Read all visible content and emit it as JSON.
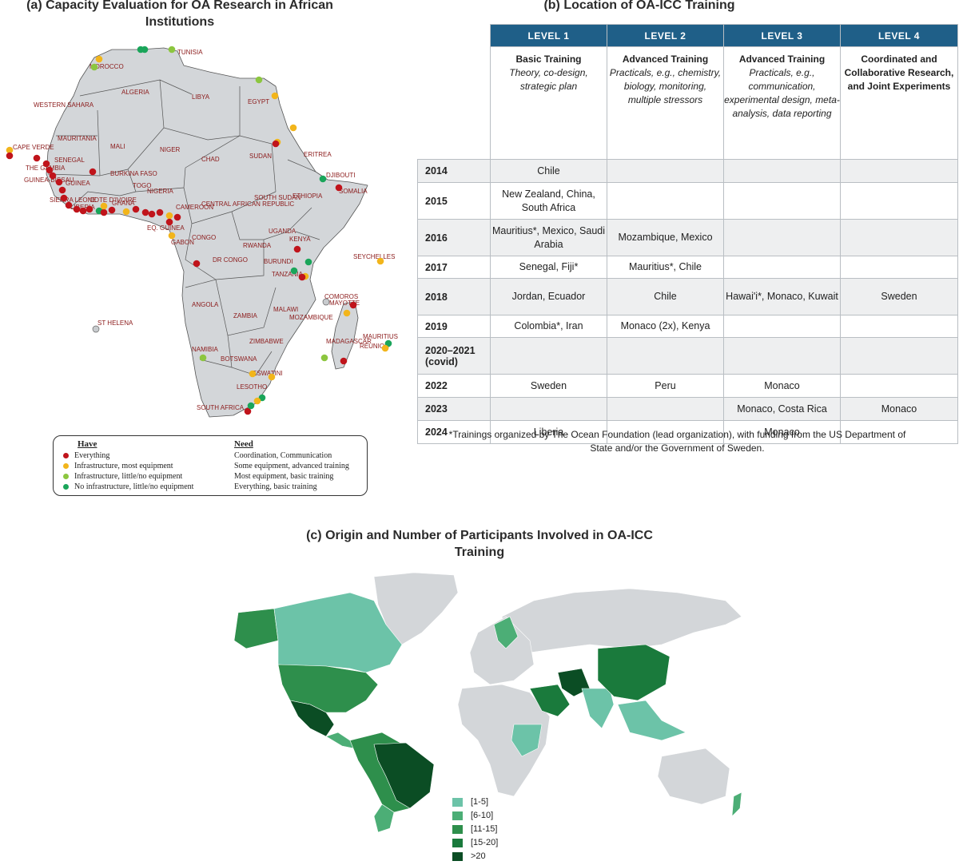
{
  "panels": {
    "a_title": "(a) Capacity Evaluation for OA Research in African Institutions",
    "b_title": "(b) Location of OA-ICC Training",
    "c_title": "(c) Origin and Number of Participants Involved in OA-ICC Training"
  },
  "africa_labels": {
    "tunisia": "TUNISIA",
    "morocco": "MOROCCO",
    "algeria": "ALGERIA",
    "libya": "LIBYA",
    "egypt": "EGYPT",
    "western_sahara": "WESTERN SAHARA",
    "mauritania": "MAURITANIA",
    "mali": "MALI",
    "niger": "NIGER",
    "chad": "CHAD",
    "sudan": "SUDAN",
    "eritrea": "ERITREA",
    "cape_verde": "CAPE VERDE",
    "senegal": "SENEGAL",
    "gambia": "THE GAMBIA",
    "guinea_bissau": "GUINEA-BISSAU",
    "guinea": "GUINEA",
    "sierra_leone": "SIERRA LEONE",
    "liberia": "LIBERIA",
    "cote_divoire": "COTE D'IVOIRE",
    "burkina": "BURKINA FASO",
    "ghana": "GHANA",
    "togo": "TOGO",
    "nigeria": "NIGERIA",
    "cameroon": "CAMEROON",
    "car": "CENTRAL AFRICAN REPUBLIC",
    "south_sudan": "SOUTH SUDAN",
    "ethiopia": "ETHIOPIA",
    "djibouti": "DJIBOUTI",
    "somalia": "SOMALIA",
    "eq_guinea": "EQ. GUINEA",
    "gabon": "GABON",
    "congo": "CONGO",
    "dr_congo": "DR CONGO",
    "uganda": "UGANDA",
    "kenya": "KENYA",
    "rwanda": "RWANDA",
    "burundi": "BURUNDI",
    "tanzania": "TANZANIA",
    "seychelles": "SEYCHELLES",
    "angola": "ANGOLA",
    "zambia": "ZAMBIA",
    "malawi": "MALAWI",
    "mozambique": "MOZAMBIQUE",
    "comoros": "COMOROS",
    "mayotte": "MAYOTTE",
    "madagascar": "MADAGASCAR",
    "mauritius": "MAURITIUS",
    "reunion": "REUNION",
    "st_helena": "ST HELENA",
    "namibia": "NAMIBIA",
    "botswana": "BOTSWANA",
    "zimbabwe": "ZIMBABWE",
    "lesotho": "LESOTHO",
    "eswatini": "ESWATINI",
    "south_africa": "SOUTH AFRICA"
  },
  "legend_a": {
    "have_header": "Have",
    "need_header": "Need",
    "rows": [
      {
        "have": "Everything",
        "need": "Coordination, Communication",
        "color": "#c0141b"
      },
      {
        "have": "Infrastructure, most equipment",
        "need": "Some equipment, advanced training",
        "color": "#f2b51b"
      },
      {
        "have": "Infrastructure, little/no equipment",
        "need": "Most equipment, basic training",
        "color": "#8cc63f"
      },
      {
        "have": "No infrastructure, little/no equipment",
        "need": "Everything, basic training",
        "color": "#1aa55a"
      }
    ]
  },
  "table": {
    "levels": [
      "LEVEL 1",
      "LEVEL 2",
      "LEVEL 3",
      "LEVEL 4"
    ],
    "desc": [
      {
        "title": "Basic Training",
        "body": "Theory, co-design, strategic plan"
      },
      {
        "title": "Advanced Training",
        "body": "Practicals, e.g., chemistry, biology, monitoring, multiple stressors"
      },
      {
        "title": "Advanced Training",
        "body": "Practicals, e.g., communication, experimental design, meta-analysis, data reporting"
      },
      {
        "title": "Coordinated and Collaborative Research, and Joint Experiments",
        "body": ""
      }
    ],
    "rows": [
      {
        "year": "2014",
        "c": [
          "Chile",
          "",
          "",
          ""
        ]
      },
      {
        "year": "2015",
        "c": [
          "New Zealand, China, South Africa",
          "",
          "",
          ""
        ]
      },
      {
        "year": "2016",
        "c": [
          "Mauritius*, Mexico, Saudi Arabia",
          "Mozambique, Mexico",
          "",
          ""
        ]
      },
      {
        "year": "2017",
        "c": [
          "Senegal, Fiji*",
          "Mauritius*, Chile",
          "",
          ""
        ]
      },
      {
        "year": "2018",
        "c": [
          "Jordan, Ecuador",
          "Chile",
          "Hawai'i*, Monaco, Kuwait",
          "Sweden"
        ]
      },
      {
        "year": "2019",
        "c": [
          "Colombia*, Iran",
          "Monaco (2x), Kenya",
          "",
          ""
        ]
      },
      {
        "year": "2020–2021 (covid)",
        "c": [
          "",
          "",
          "",
          ""
        ]
      },
      {
        "year": "2022",
        "c": [
          "Sweden",
          "Peru",
          "Monaco",
          ""
        ]
      },
      {
        "year": "2023",
        "c": [
          "",
          "",
          "Monaco, Costa Rica",
          "Monaco"
        ]
      },
      {
        "year": "2024",
        "c": [
          "Liberia",
          "",
          "Monaco",
          ""
        ]
      }
    ],
    "note": "*Trainings organized by The Ocean Foundation (lead organization), with funding from the US Department of State and/or the Government of Sweden."
  },
  "legend_c": [
    {
      "label": "[1-5]",
      "color": "#6cc3a8"
    },
    {
      "label": "[6-10]",
      "color": "#4cae76"
    },
    {
      "label": "[11-15]",
      "color": "#2e8f4c"
    },
    {
      "label": "[15-20]",
      "color": "#1a7a3c"
    },
    {
      "label": ">20",
      "color": "#0b4d24"
    }
  ],
  "colors": {
    "land_grey": "#d3d6d9",
    "border": "#555555",
    "header_blue": "#1f5f88"
  }
}
